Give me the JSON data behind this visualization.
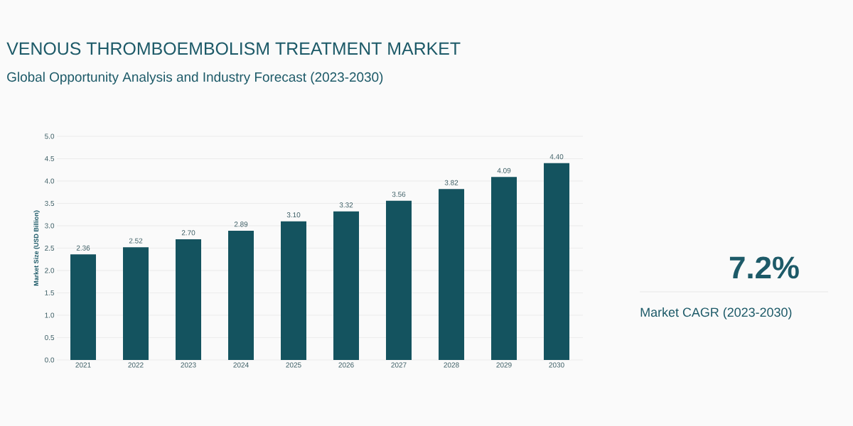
{
  "chart_data": {
    "type": "bar",
    "title": "VENOUS THROMBOEMBOLISM TREATMENT MARKET",
    "subtitle": "Global Opportunity Analysis and Industry Forecast (2023-2030)",
    "ylabel": "Market Size (USD Billion)",
    "categories": [
      "2021",
      "2022",
      "2023",
      "2024",
      "2025",
      "2026",
      "2027",
      "2028",
      "2029",
      "2030"
    ],
    "values": [
      2.36,
      2.52,
      2.7,
      2.89,
      3.1,
      3.32,
      3.56,
      3.82,
      4.09,
      4.4
    ],
    "value_labels": [
      "2.36",
      "2.52",
      "2.70",
      "2.89",
      "3.10",
      "3.32",
      "3.56",
      "3.82",
      "4.09",
      "4.40"
    ],
    "color": "#14535f",
    "ylim": [
      0,
      5
    ],
    "yticks": [
      "0.0",
      "0.5",
      "1.0",
      "1.5",
      "2.0",
      "2.5",
      "3.0",
      "3.5",
      "4.0",
      "4.5",
      "5.0"
    ],
    "grid": "y",
    "annotations": [
      "7.2%",
      "Market CAGR (2023-2030)"
    ]
  }
}
